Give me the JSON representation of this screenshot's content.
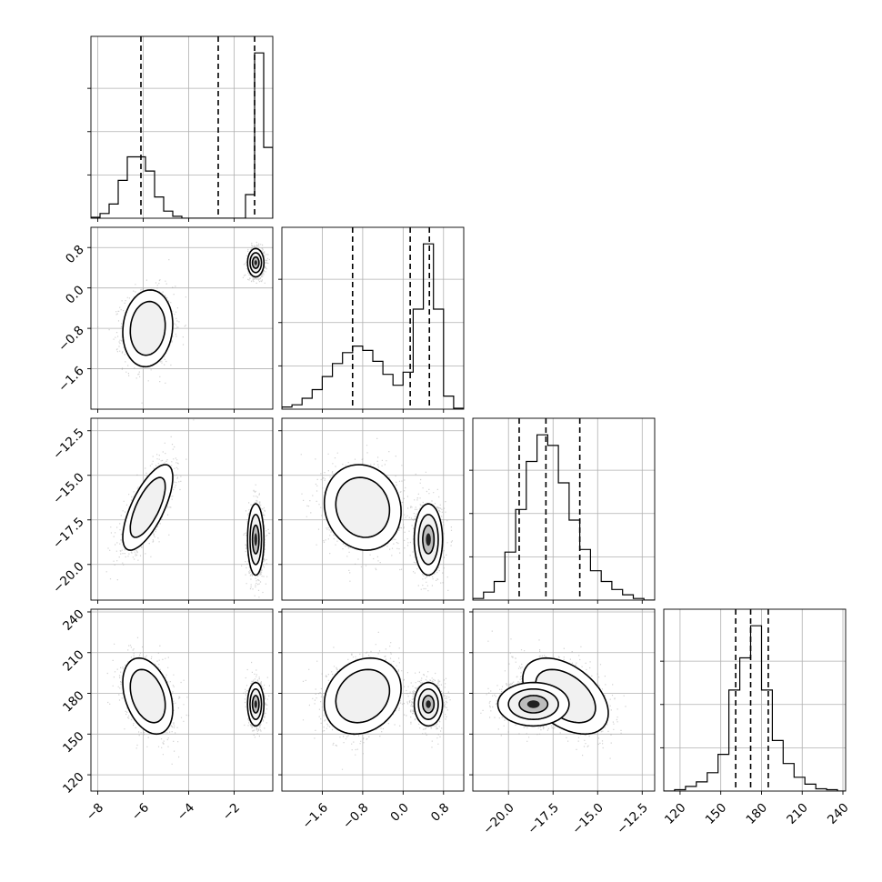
{
  "chart_data": {
    "type": "corner",
    "parameters": [
      {
        "id": "p1",
        "range": [
          -8.3,
          -0.3
        ],
        "ticks": [
          -8,
          -6,
          -4,
          -2
        ],
        "tick_labels": [
          "−8",
          "−6",
          "−4",
          "−2"
        ],
        "quantiles": [
          -6.1,
          -2.7,
          -1.1
        ],
        "histogram": {
          "bin_edges": [
            -8.3,
            -7.9,
            -7.5,
            -7.1,
            -6.7,
            -6.3,
            -5.9,
            -5.5,
            -5.1,
            -4.7,
            -4.3,
            -3.9,
            -3.5,
            -3.1,
            -2.7,
            -2.3,
            -1.9,
            -1.5,
            -1.1,
            -0.7,
            -0.3
          ],
          "counts": [
            0.2,
            1.0,
            3.0,
            8.0,
            13.0,
            13.0,
            10.0,
            4.5,
            1.5,
            0.4,
            0,
            0,
            0,
            0,
            0,
            0,
            0,
            5.0,
            35.0,
            15.0
          ]
        }
      },
      {
        "id": "p2",
        "range": [
          -2.4,
          1.2
        ],
        "ticks": [
          -1.6,
          -0.8,
          0.0,
          0.8
        ],
        "tick_labels": [
          "−1.6",
          "−0.8",
          "0.0",
          "0.8"
        ],
        "quantiles": [
          -1.0,
          0.14,
          0.52
        ],
        "histogram": {
          "bin_edges": [
            -2.4,
            -2.2,
            -2.0,
            -1.8,
            -1.6,
            -1.4,
            -1.2,
            -1.0,
            -0.8,
            -0.6,
            -0.4,
            -0.2,
            0.0,
            0.2,
            0.4,
            0.6,
            0.8,
            1.0,
            1.2
          ],
          "counts": [
            0.5,
            1.0,
            2.5,
            4.5,
            7.5,
            10.5,
            13.0,
            14.5,
            13.5,
            11.0,
            8.0,
            5.5,
            8.5,
            23.0,
            38.0,
            23.0,
            3.0,
            0.2
          ]
        }
      },
      {
        "id": "p3",
        "range": [
          -22.0,
          -11.8
        ],
        "ticks": [
          -20.0,
          -17.5,
          -15.0,
          -12.5
        ],
        "tick_labels": [
          "−20.0",
          "−17.5",
          "−15.0",
          "−12.5"
        ],
        "quantiles": [
          -19.4,
          -17.9,
          -16.0
        ],
        "histogram": {
          "bin_edges": [
            -22.0,
            -21.4,
            -20.8,
            -20.2,
            -19.6,
            -19.0,
            -18.4,
            -17.8,
            -17.2,
            -16.6,
            -16.0,
            -15.4,
            -14.8,
            -14.2,
            -13.6,
            -13.0,
            -12.4,
            -11.8
          ],
          "counts": [
            0.3,
            1.5,
            3.5,
            9.0,
            17.0,
            26.0,
            31.0,
            29.0,
            22.0,
            15.0,
            9.5,
            5.5,
            3.5,
            2.0,
            1.0,
            0.3,
            0
          ]
        }
      },
      {
        "id": "p4",
        "range": [
          108.0,
          242.0
        ],
        "ticks": [
          120,
          150,
          180,
          210,
          240
        ],
        "tick_labels": [
          "120",
          "150",
          "180",
          "210",
          "240"
        ],
        "quantiles": [
          161.0,
          172.0,
          185.0
        ],
        "histogram": {
          "bin_edges": [
            108,
            116,
            124,
            132,
            140,
            148,
            156,
            164,
            172,
            180,
            188,
            196,
            204,
            212,
            220,
            228,
            236,
            242
          ],
          "counts": [
            0,
            0.3,
            1.0,
            2.0,
            4.0,
            8.0,
            22.0,
            29.0,
            36.0,
            22.0,
            11.0,
            6.0,
            3.0,
            1.5,
            0.5,
            0.3,
            0
          ]
        }
      }
    ],
    "density_modes": [
      {
        "weight": 0.5,
        "mean": [
          -5.8,
          -0.8,
          -16.8,
          178.0
        ],
        "sd": [
          0.55,
          0.38,
          1.2,
          14.0
        ],
        "corr": [
          [
            1,
            0.1,
            0.7,
            -0.35
          ],
          [
            0.1,
            1,
            -0.1,
            0.2
          ],
          [
            0.7,
            -0.1,
            1,
            -0.45
          ],
          [
            -0.35,
            0.2,
            -0.45,
            1
          ]
        ]
      },
      {
        "weight": 0.5,
        "mean": [
          -1.05,
          0.5,
          -18.6,
          172.0
        ],
        "sd": [
          0.18,
          0.14,
          1.0,
          8.0
        ],
        "corr": [
          [
            1,
            0,
            0,
            0
          ],
          [
            0,
            1,
            0,
            0
          ],
          [
            0,
            0,
            1,
            0
          ],
          [
            0,
            0,
            0,
            1
          ]
        ]
      }
    ],
    "grid": true
  }
}
